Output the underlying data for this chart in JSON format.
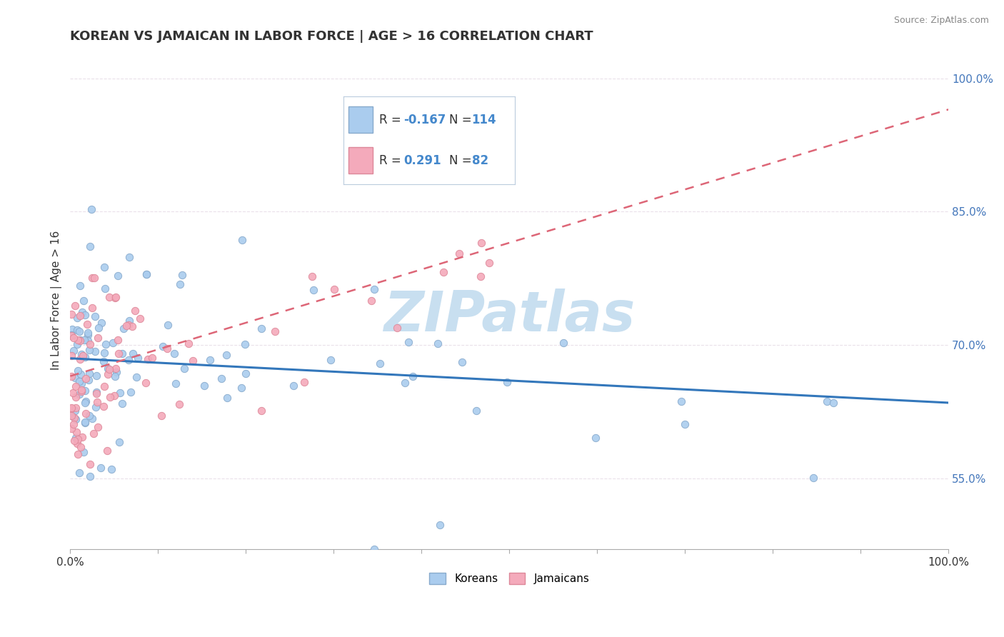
{
  "title": "KOREAN VS JAMAICAN IN LABOR FORCE | AGE > 16 CORRELATION CHART",
  "source_text": "Source: ZipAtlas.com",
  "ylabel": "In Labor Force | Age > 16",
  "xlim": [
    0.0,
    1.0
  ],
  "ylim": [
    0.47,
    1.03
  ],
  "ytick_vals": [
    0.55,
    0.7,
    0.85,
    1.0
  ],
  "ytick_labels": [
    "55.0%",
    "70.0%",
    "85.0%",
    "100.0%"
  ],
  "xtick_vals": [
    0.0,
    0.1,
    0.2,
    0.3,
    0.4,
    0.5,
    0.6,
    0.7,
    0.8,
    0.9,
    1.0
  ],
  "xtick_labels_show": {
    "0.0": "0.0%",
    "1.0": "100.0%"
  },
  "korean_color": "#aaccee",
  "jamaican_color": "#f4aabb",
  "korean_edge": "#88aacc",
  "jamaican_edge": "#dd8899",
  "trend_korean_color": "#3377bb",
  "trend_jamaican_color": "#dd6677",
  "watermark": "ZIPatlas",
  "watermark_color": "#c8dff0",
  "legend_R_korean": "-0.167",
  "legend_N_korean": "114",
  "legend_R_jamaican": "0.291",
  "legend_N_jamaican": "82",
  "value_color": "#4488cc",
  "label_color": "#333333",
  "grid_color": "#ddcccc",
  "title_color": "#333333",
  "source_color": "#888888",
  "ytick_color": "#4477bb"
}
